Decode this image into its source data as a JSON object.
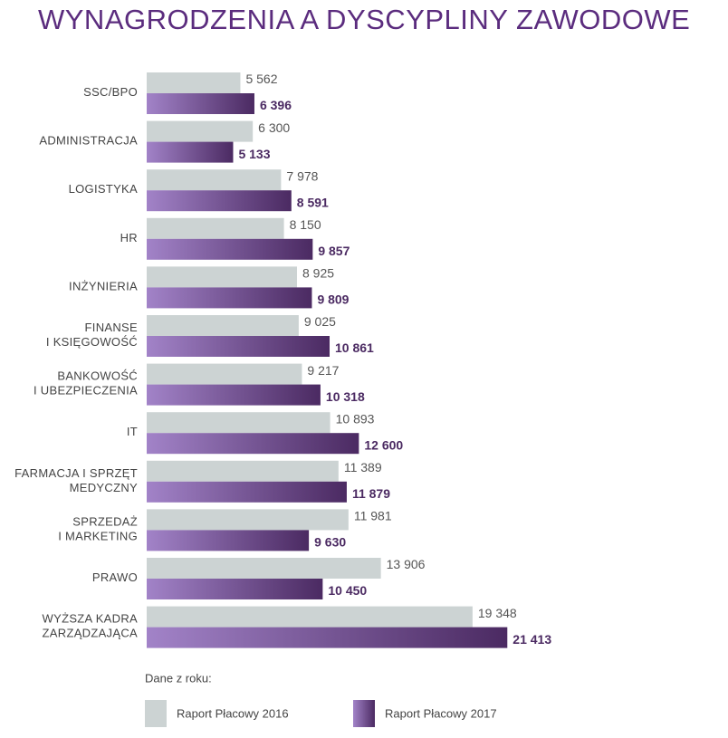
{
  "chart_data": {
    "type": "bar",
    "orientation": "horizontal",
    "title": "WYNAGRODZENIA A DYSCYPLINY ZAWODOWE",
    "categories": [
      [
        "SSC/BPO"
      ],
      [
        "ADMINISTRACJA"
      ],
      [
        "LOGISTYKA"
      ],
      [
        "HR"
      ],
      [
        "INŻYNIERIA"
      ],
      [
        "FINANSE",
        "I KSIĘGOWOŚĆ"
      ],
      [
        "BANKOWOŚĆ",
        "I UBEZPIECZENIA"
      ],
      [
        "IT"
      ],
      [
        "FARMACJA I SPRZĘT",
        "MEDYCZNY"
      ],
      [
        "SPRZEDAŻ",
        "I MARKETING"
      ],
      [
        "PRAWO"
      ],
      [
        "WYŻSZA KADRA",
        "ZARZĄDZAJĄCA"
      ]
    ],
    "legend_title": "Dane z roku:",
    "series": [
      {
        "name": "Raport Płacowy 2016",
        "color": "#ccd3d3",
        "values": [
          5562,
          6300,
          7978,
          8150,
          8925,
          9025,
          9217,
          10893,
          11389,
          11981,
          13906,
          19348
        ],
        "value_labels": [
          "5 562",
          "6 300",
          "7 978",
          "8 150",
          "8 925",
          "9 025",
          "9 217",
          "10 893",
          "11 389",
          "11 981",
          "13 906",
          "19 348"
        ]
      },
      {
        "name": "Raport Płacowy 2017",
        "color": "#4b2a62",
        "values": [
          6396,
          5133,
          8591,
          9857,
          9809,
          10861,
          10318,
          12600,
          11879,
          9630,
          10450,
          21413
        ],
        "value_labels": [
          "6 396",
          "5 133",
          "8 591",
          "9 857",
          "9 809",
          "10 861",
          "10 318",
          "12 600",
          "11 879",
          "9 630",
          "10 450",
          "21 413"
        ]
      }
    ]
  }
}
